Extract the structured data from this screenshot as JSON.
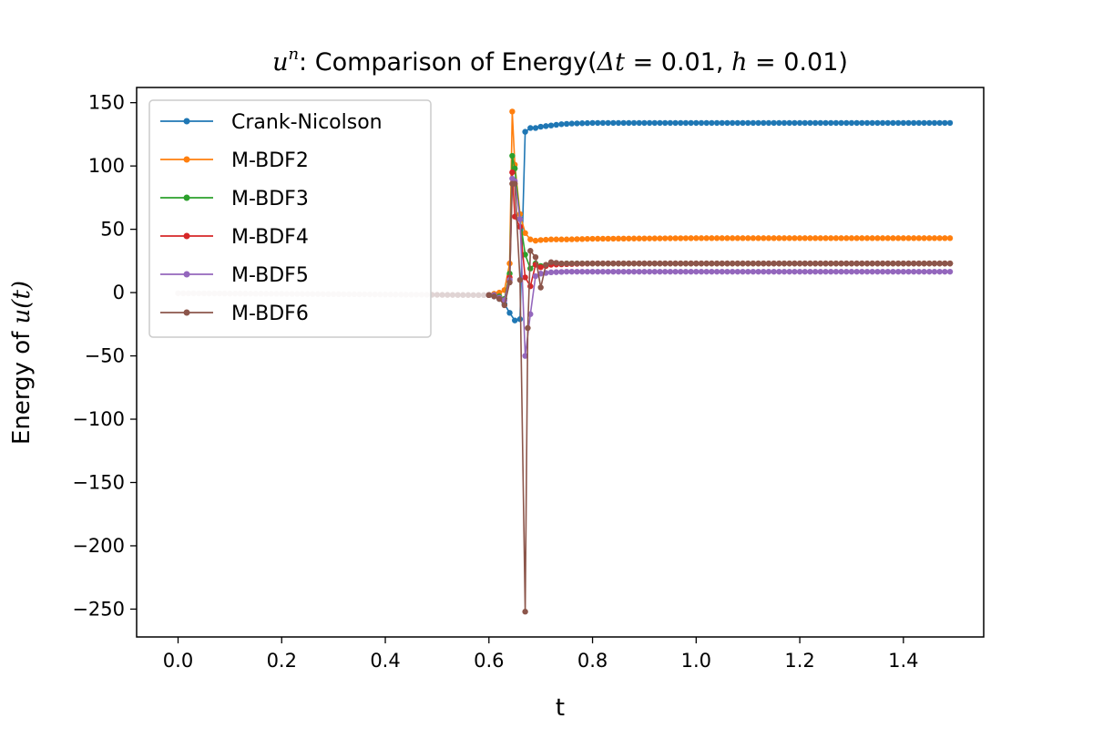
{
  "chart_data": {
    "type": "line",
    "title_parts": {
      "var": "u",
      "sup": "n",
      "text": ": Comparison of Energy(",
      "dt_sym": "Δt",
      "eq1": " = 0.01, ",
      "h_sym": "h",
      "eq2": " = 0.01)"
    },
    "xlabel": "t",
    "ylabel_parts": {
      "text": "Energy of ",
      "var": "u(t)"
    },
    "xlim": [
      -0.08,
      1.555
    ],
    "ylim": [
      -272,
      162
    ],
    "xticks": [
      0.0,
      0.2,
      0.4,
      0.6,
      0.8,
      1.0,
      1.2,
      1.4
    ],
    "xtick_labels": [
      "0.0",
      "0.2",
      "0.4",
      "0.6",
      "0.8",
      "1.0",
      "1.2",
      "1.4"
    ],
    "yticks": [
      150,
      100,
      50,
      0,
      -50,
      -100,
      -150,
      -200,
      -250
    ],
    "ytick_labels": [
      "150",
      "100",
      "50",
      "0",
      "−50",
      "−100",
      "−150",
      "−200",
      "−250"
    ],
    "legend_position": "upper-left",
    "series": [
      {
        "name": "Crank-Nicolson",
        "color": "#1f77b4",
        "x": [
          0.6,
          0.61,
          0.62,
          0.63,
          0.64,
          0.65,
          0.66,
          0.67,
          0.68,
          0.69,
          0.7,
          0.72,
          0.74,
          0.76,
          0.8,
          0.85,
          1.0,
          1.49
        ],
        "y": [
          -2,
          -3,
          -5,
          -9,
          -16,
          -22,
          -21,
          127,
          130,
          130,
          131,
          132,
          133,
          133.5,
          134,
          134,
          134,
          134
        ]
      },
      {
        "name": "M-BDF2",
        "color": "#ff7f0e",
        "x": [
          0.6,
          0.61,
          0.62,
          0.63,
          0.64,
          0.645,
          0.65,
          0.66,
          0.67,
          0.68,
          0.69,
          0.7,
          0.72,
          0.75,
          0.8,
          1.0,
          1.49
        ],
        "y": [
          -2,
          -1,
          0,
          2,
          23,
          143,
          101,
          62,
          47,
          42,
          41,
          41.5,
          42,
          42,
          42.5,
          43,
          43
        ]
      },
      {
        "name": "M-BDF3",
        "color": "#2ca02c",
        "x": [
          0.6,
          0.61,
          0.62,
          0.63,
          0.64,
          0.645,
          0.65,
          0.66,
          0.67,
          0.68,
          0.69,
          0.7,
          0.72,
          0.75,
          0.8,
          1.0,
          1.49
        ],
        "y": [
          -2,
          -2,
          -3,
          -5,
          15,
          108,
          98,
          58,
          30,
          19,
          23,
          21,
          22.5,
          23,
          23,
          23,
          23
        ]
      },
      {
        "name": "M-BDF4",
        "color": "#d62728",
        "x": [
          0.6,
          0.61,
          0.62,
          0.63,
          0.64,
          0.645,
          0.65,
          0.66,
          0.67,
          0.68,
          0.69,
          0.7,
          0.72,
          0.75,
          0.8,
          1.0,
          1.49
        ],
        "y": [
          -2,
          -2,
          -4,
          -6,
          12,
          95,
          60,
          52,
          12,
          5,
          22,
          20,
          22,
          22.5,
          23,
          23,
          23
        ]
      },
      {
        "name": "M-BDF5",
        "color": "#9467bd",
        "x": [
          0.6,
          0.61,
          0.62,
          0.63,
          0.64,
          0.645,
          0.65,
          0.66,
          0.67,
          0.68,
          0.69,
          0.7,
          0.72,
          0.75,
          0.8,
          1.0,
          1.49
        ],
        "y": [
          -2,
          -2,
          -4,
          -6,
          10,
          90,
          88,
          58,
          -50,
          -17,
          13,
          15,
          16,
          16.5,
          16.5,
          16.5,
          16.5
        ]
      },
      {
        "name": "M-BDF6",
        "color": "#8c564b",
        "x": [
          0.6,
          0.61,
          0.62,
          0.63,
          0.64,
          0.645,
          0.65,
          0.66,
          0.67,
          0.675,
          0.68,
          0.69,
          0.7,
          0.71,
          0.72,
          0.74,
          0.76,
          0.8,
          1.0,
          1.49
        ],
        "y": [
          -2,
          -3,
          -5,
          -10,
          8,
          86,
          86,
          10,
          -252,
          -28,
          33,
          28,
          4,
          22,
          24,
          23,
          23,
          23,
          23,
          23
        ]
      }
    ],
    "pre_segment": {
      "x_start": 0.0,
      "x_end": 0.59,
      "step": 0.01,
      "y_start": -0.5,
      "y_end": -2.0,
      "color": "#e0d4d4"
    }
  }
}
